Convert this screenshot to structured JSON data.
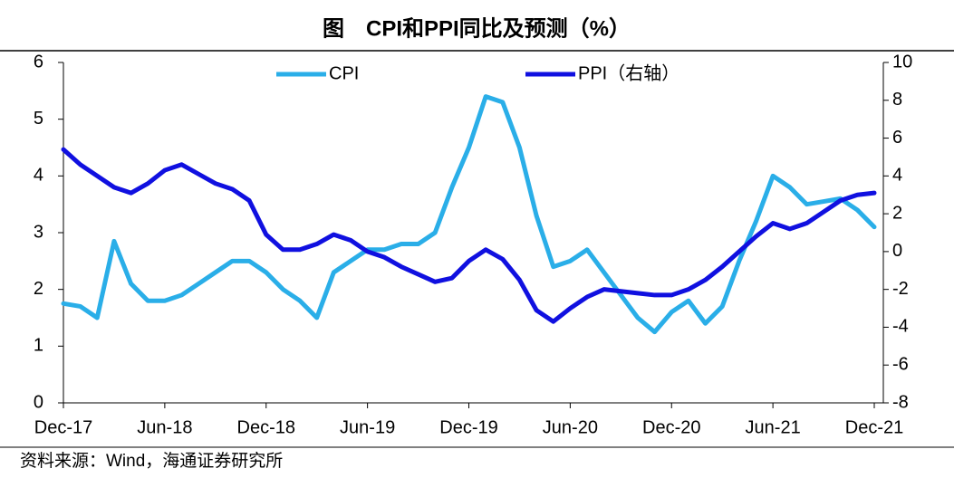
{
  "chart_data": {
    "type": "line",
    "title": "图　CPI和PPI同比及预测（%）",
    "source": "资料来源：Wind，海通证券研究所",
    "categories": [
      "Dec-17",
      null,
      null,
      null,
      null,
      null,
      "Jun-18",
      null,
      null,
      null,
      null,
      null,
      "Dec-18",
      null,
      null,
      null,
      null,
      null,
      "Jun-19",
      null,
      null,
      null,
      null,
      null,
      "Dec-19",
      null,
      null,
      null,
      null,
      null,
      "Jun-20",
      null,
      null,
      null,
      null,
      null,
      "Dec-20",
      null,
      null,
      null,
      null,
      null,
      "Jun-21",
      null,
      null,
      null,
      null,
      null,
      "Dec-21"
    ],
    "series": [
      {
        "name": "CPI",
        "color": "#2aaee8",
        "values": [
          1.75,
          1.7,
          1.5,
          2.85,
          2.1,
          1.8,
          1.8,
          1.9,
          2.1,
          2.3,
          2.5,
          2.5,
          2.3,
          2.0,
          1.8,
          1.5,
          2.3,
          2.5,
          2.7,
          2.7,
          2.8,
          2.8,
          3.0,
          3.8,
          4.5,
          5.4,
          5.3,
          4.5,
          3.3,
          2.4,
          2.5,
          2.7,
          2.3,
          1.9,
          1.5,
          1.25,
          1.6,
          1.8,
          1.4,
          1.7,
          2.5,
          3.2,
          4.0,
          3.8,
          3.5,
          3.55,
          3.6,
          3.4,
          3.1
        ]
      },
      {
        "name": "PPI（右轴）",
        "color": "#1010e0",
        "axis": "y2",
        "values": [
          5.4,
          4.6,
          4.0,
          3.4,
          3.1,
          3.6,
          4.3,
          4.6,
          4.1,
          3.6,
          3.3,
          2.7,
          0.9,
          0.1,
          0.1,
          0.4,
          0.9,
          0.6,
          0.0,
          -0.3,
          -0.8,
          -1.2,
          -1.6,
          -1.4,
          -0.5,
          0.1,
          -0.4,
          -1.5,
          -3.1,
          -3.7,
          -3.0,
          -2.4,
          -2.0,
          -2.1,
          -2.2,
          -2.3,
          -2.3,
          -2.0,
          -1.5,
          -0.8,
          0.0,
          0.8,
          1.5,
          1.2,
          1.5,
          2.1,
          2.7,
          3.0,
          3.1
        ]
      }
    ],
    "ylim": [
      0,
      6
    ],
    "yticks": [
      0,
      1,
      2,
      3,
      4,
      5,
      6
    ],
    "y2lim": [
      -8,
      10
    ],
    "y2ticks": [
      -8,
      -6,
      -4,
      -2,
      0,
      2,
      4,
      6,
      8,
      10
    ],
    "legend": "top"
  }
}
